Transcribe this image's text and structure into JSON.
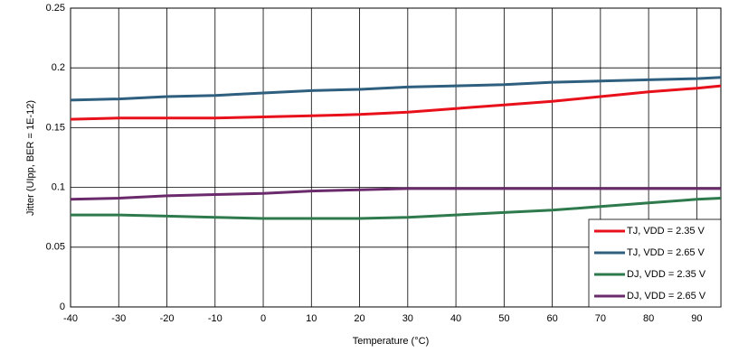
{
  "chart_data": {
    "type": "line",
    "x_label": "Temperature (°C)",
    "y_label": "Jitter (UIpp, BER = 1E-12)",
    "x": [
      -40,
      -30,
      -20,
      -10,
      0,
      10,
      20,
      30,
      40,
      50,
      60,
      70,
      80,
      90,
      95
    ],
    "series": [
      {
        "name": "TJ, VDD = 2.35 V",
        "color": "#e8101a",
        "values": [
          0.157,
          0.158,
          0.158,
          0.158,
          0.159,
          0.16,
          0.161,
          0.163,
          0.166,
          0.169,
          0.172,
          0.176,
          0.18,
          0.183,
          0.185
        ]
      },
      {
        "name": "TJ, VDD = 2.65 V",
        "color": "#2f5f7f",
        "values": [
          0.173,
          0.174,
          0.176,
          0.177,
          0.179,
          0.181,
          0.182,
          0.184,
          0.185,
          0.186,
          0.188,
          0.189,
          0.19,
          0.191,
          0.192
        ]
      },
      {
        "name": "DJ, VDD = 2.35 V",
        "color": "#2e7a4c",
        "values": [
          0.077,
          0.077,
          0.076,
          0.075,
          0.074,
          0.074,
          0.074,
          0.075,
          0.077,
          0.079,
          0.081,
          0.084,
          0.087,
          0.09,
          0.091
        ]
      },
      {
        "name": "DJ, VDD = 2.65 V",
        "color": "#6b2a6b",
        "values": [
          0.09,
          0.091,
          0.093,
          0.094,
          0.095,
          0.097,
          0.098,
          0.099,
          0.099,
          0.099,
          0.099,
          0.099,
          0.099,
          0.099,
          0.099
        ]
      }
    ],
    "xlim": [
      -40,
      95
    ],
    "xticks": [
      -40,
      -30,
      -20,
      -10,
      0,
      10,
      20,
      30,
      40,
      50,
      60,
      70,
      80,
      90
    ],
    "ylim": [
      0,
      0.25
    ],
    "yticks": [
      0,
      0.05,
      0.1,
      0.15,
      0.2,
      0.25
    ],
    "grid": true,
    "legend": "lower-right"
  }
}
